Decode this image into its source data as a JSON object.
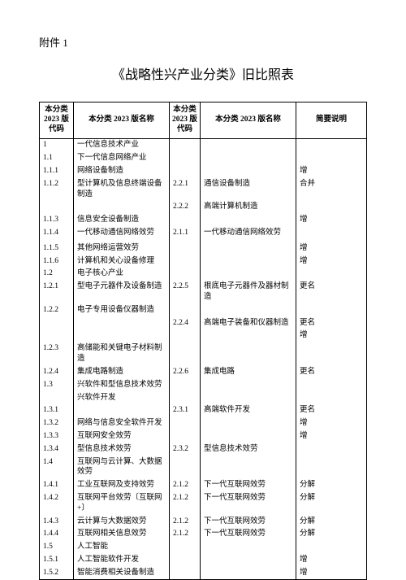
{
  "attachment": "附件 1",
  "title": "《战略性兴产业分类》旧比照表",
  "headers": {
    "h1": "本分类2023 版代码",
    "h2": "本分类 2023 版名称",
    "h3": "本分类2023 版代码",
    "h4": "本分类 2023 版名称",
    "h5": "简要说明"
  },
  "rows": [
    {
      "c1": "1",
      "c2": "一代信息技术产业",
      "c3": "",
      "c4": "",
      "c5": ""
    },
    {
      "c1": "1.1",
      "c2": "下一代信息网络产业",
      "c3": "",
      "c4": "",
      "c5": ""
    },
    {
      "c1": "1.1.1",
      "c2": "网络设备制造",
      "c3": "",
      "c4": "",
      "c5": "增"
    },
    {
      "c1": "1.1.2",
      "c2": "型计算机及信息终端设备制造",
      "c3": "2.2.1",
      "c4": "通信设备制造",
      "c5": "合并"
    },
    {
      "c1": "",
      "c2": "",
      "c3": "2.2.2",
      "c4": "高端计算机制造",
      "c5": ""
    },
    {
      "c1": "1.1.3",
      "c2": "信息安全设备制造",
      "c3": "",
      "c4": "",
      "c5": "增"
    },
    {
      "c1": "1.1.4",
      "c2": "一代移动通信网络效劳",
      "c3": "2.1.1",
      "c4": "一代移动通信网络效劳",
      "c5": ""
    },
    {
      "c1": "",
      "c2": "",
      "c3": "",
      "c4": "",
      "c5": ""
    },
    {
      "c1": "1.1.5",
      "c2": "其他网络运营效劳",
      "c3": "",
      "c4": "",
      "c5": "增"
    },
    {
      "c1": "1.1.6",
      "c2": "计算机和关心设备修理",
      "c3": "",
      "c4": "",
      "c5": "增"
    },
    {
      "c1": "1.2",
      "c2": "电子核心产业",
      "c3": "",
      "c4": "",
      "c5": ""
    },
    {
      "c1": "1.2.1",
      "c2": "型电子元器件及设备制造",
      "c3": "2.2.5",
      "c4": "根底电子元器件及器材制造",
      "c5": "更名"
    },
    {
      "c1": "1.2.2",
      "c2": "电子专用设备仪器制造",
      "c3": "",
      "c4": "",
      "c5": ""
    },
    {
      "c1": "",
      "c2": "",
      "c3": "2.2.4",
      "c4": "高端电子装备和仪器制造",
      "c5": "更名"
    },
    {
      "c1": "",
      "c2": "",
      "c3": "",
      "c4": "",
      "c5": "增"
    },
    {
      "c1": "1.2.3",
      "c2": "高储能和关键电子材料制造",
      "c3": "",
      "c4": "",
      "c5": ""
    },
    {
      "c1": "1.2.4",
      "c2": "集成电路制造",
      "c3": "2.2.6",
      "c4": "集成电路",
      "c5": "更名"
    },
    {
      "c1": "1.3",
      "c2": "兴软件和型信息技术效劳",
      "c3": "",
      "c4": "",
      "c5": ""
    },
    {
      "c1": "",
      "c2": "兴软件开发",
      "c3": "",
      "c4": "",
      "c5": ""
    },
    {
      "c1": "1.3.1",
      "c2": "",
      "c3": "2.3.1",
      "c4": "高端软件开发",
      "c5": "更名"
    },
    {
      "c1": "1.3.2",
      "c2": "网络与信息安全软件开发",
      "c3": "",
      "c4": "",
      "c5": "增"
    },
    {
      "c1": "1.3.3",
      "c2": "互联网安全效劳",
      "c3": "",
      "c4": "",
      "c5": "增"
    },
    {
      "c1": "1.3.4",
      "c2": "型信息技术效劳",
      "c3": "2.3.2",
      "c4": "型信息技术效劳",
      "c5": ""
    },
    {
      "c1": "1.4",
      "c2": "互联网与云计算、大数据效劳",
      "c3": "",
      "c4": "",
      "c5": ""
    },
    {
      "c1": "1.4.1",
      "c2": "工业互联网及支持效劳",
      "c3": "2.1.2",
      "c4": "下一代互联网效劳",
      "c5": "分解"
    },
    {
      "c1": "1.4.2",
      "c2": "互联网平台效劳〔互联网+〕",
      "c3": "2.1.2",
      "c4": "下一代互联网效劳",
      "c5": "分解"
    },
    {
      "c1": "1.4.3",
      "c2": "云计算与大数据效劳",
      "c3": "2.1.2",
      "c4": "下一代互联网效劳",
      "c5": "分解"
    },
    {
      "c1": "1.4.4",
      "c2": "互联网相关信息效劳",
      "c3": "2.1.2",
      "c4": "下一代互联网效劳",
      "c5": "分解"
    },
    {
      "c1": "1.5",
      "c2": "人工智能",
      "c3": "",
      "c4": "",
      "c5": ""
    },
    {
      "c1": "1.5.1",
      "c2": "人工智能软件开发",
      "c3": "",
      "c4": "",
      "c5": "增"
    },
    {
      "c1": "1.5.2",
      "c2": "智能消费相关设备制造",
      "c3": "",
      "c4": "",
      "c5": "增"
    }
  ]
}
